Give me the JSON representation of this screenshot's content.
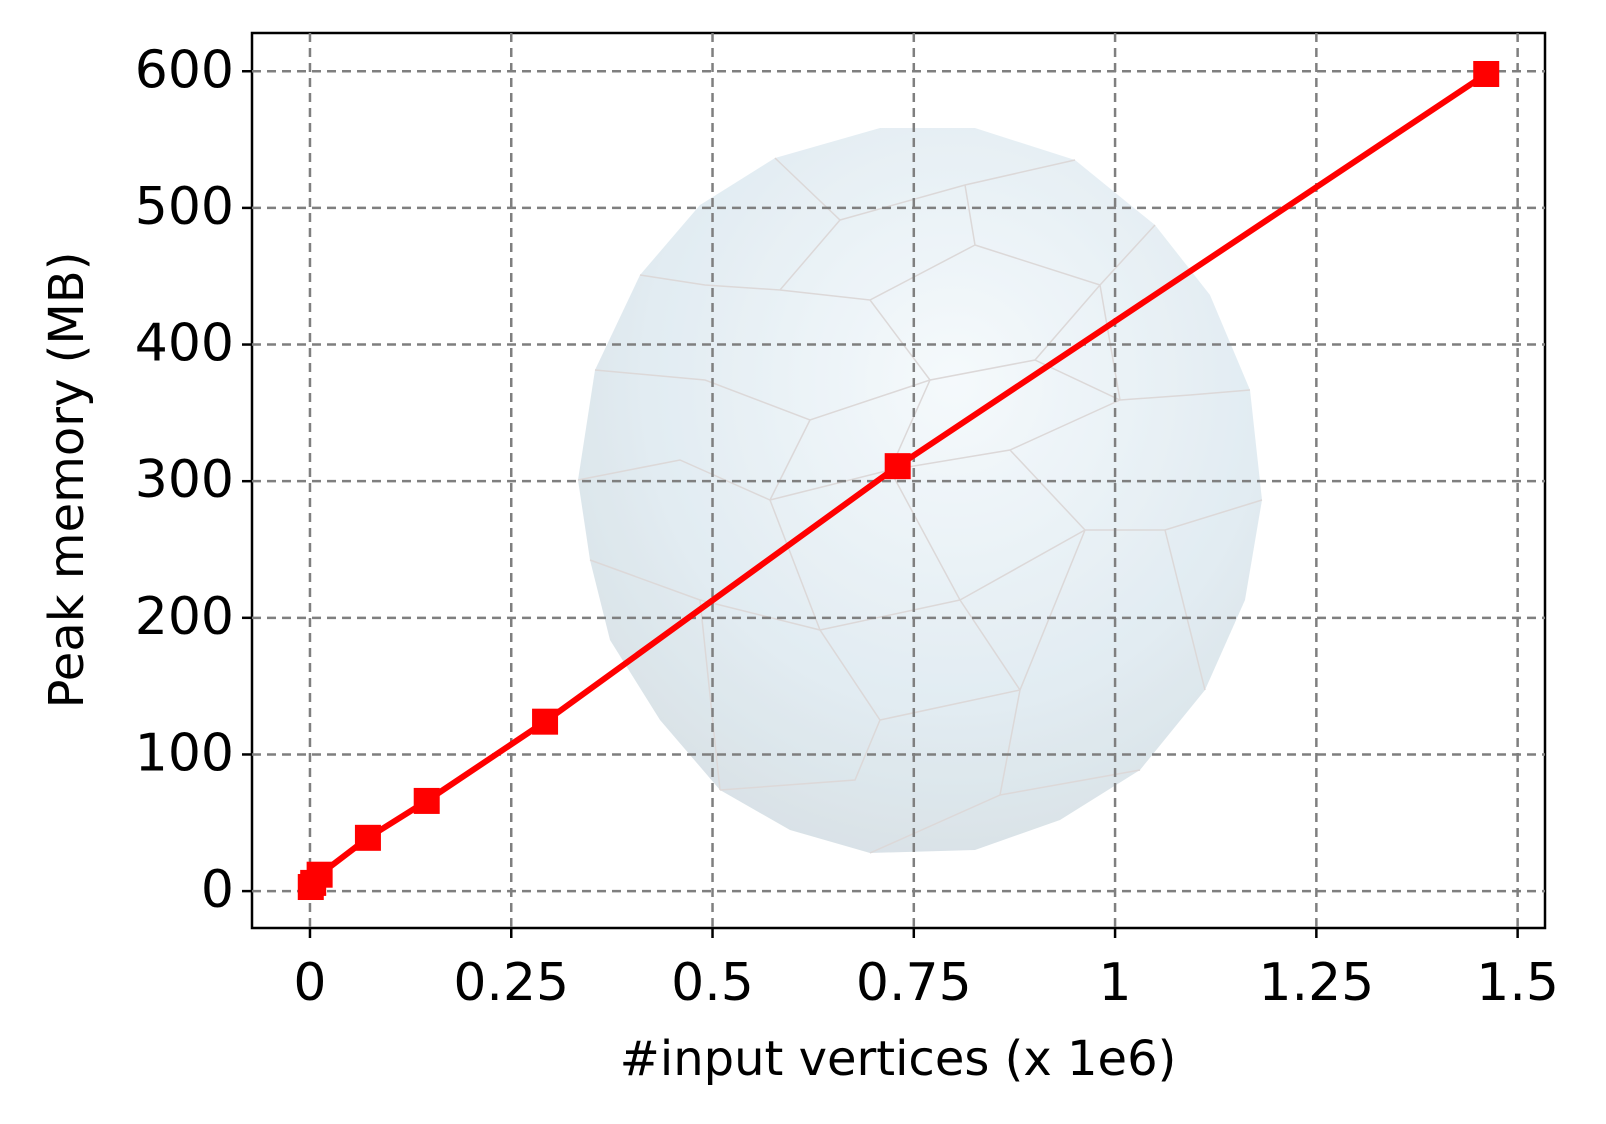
{
  "chart_data": {
    "type": "line",
    "x_label": "#input vertices (x 1e6)",
    "y_label": "Peak memory (MB)",
    "xlim": [
      -0.072,
      1.534
    ],
    "ylim": [
      -27,
      628
    ],
    "xticks": [
      0,
      0.25,
      0.5,
      0.75,
      1,
      1.25,
      1.5
    ],
    "yticks": [
      0,
      100,
      200,
      300,
      400,
      500,
      600
    ],
    "grid": true,
    "series": [
      {
        "color": "#ff0000",
        "x": [
          0.001,
          0.004,
          0.012,
          0.072,
          0.145,
          0.292,
          0.73,
          1.461
        ],
        "values": [
          3,
          6,
          12,
          39,
          66,
          124,
          311,
          598
        ]
      }
    ]
  }
}
